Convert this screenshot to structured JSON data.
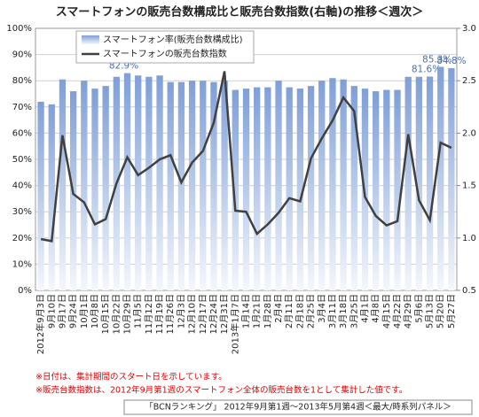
{
  "chart_data": {
    "type": "bar_line",
    "title": "スマートフォンの販売台数構成比と販売台数指数(右軸)の推移＜週次＞",
    "categories": [
      "2012年9月3日",
      "9月10日",
      "9月17日",
      "9月24日",
      "10月1日",
      "10月8日",
      "10月15日",
      "10月22日",
      "10月29日",
      "11月5日",
      "11月12日",
      "11月19日",
      "11月26日",
      "12月3日",
      "12月10日",
      "12月17日",
      "12月24日",
      "12月31日",
      "2013年1月7日",
      "1月14日",
      "1月21日",
      "1月28日",
      "2月4日",
      "2月11日",
      "2月18日",
      "2月25日",
      "3月4日",
      "3月11日",
      "3月18日",
      "3月25日",
      "4月1日",
      "4月8日",
      "4月15日",
      "4月22日",
      "4月29日",
      "5月6日",
      "5月13日",
      "5月20日",
      "5月27日"
    ],
    "series": [
      {
        "name": "スマートフォン率(販売台数構成比)",
        "type": "bar",
        "color": "#7f9fd8",
        "values": [
          72,
          71,
          80.5,
          76,
          80,
          77,
          78,
          81.5,
          82.9,
          82,
          81.5,
          82,
          79.5,
          79.5,
          80,
          80,
          79.5,
          80,
          76.5,
          77,
          77.5,
          77.5,
          80,
          77.5,
          77,
          78,
          80,
          81,
          80.5,
          78,
          77,
          76,
          76.5,
          76.5,
          81.5,
          81.5,
          81.6,
          85.3,
          84.8
        ],
        "value_labels": [
          null,
          null,
          null,
          null,
          null,
          null,
          null,
          null,
          "82.9%",
          null,
          null,
          null,
          null,
          null,
          null,
          null,
          null,
          null,
          null,
          null,
          null,
          null,
          null,
          null,
          null,
          null,
          null,
          null,
          null,
          null,
          null,
          null,
          null,
          null,
          null,
          null,
          "81.6%",
          "85.3%",
          "84.8%"
        ]
      },
      {
        "name": "スマートフォンの販売台数指数",
        "type": "line",
        "color": "#404040",
        "axis": "y2",
        "values": [
          0.99,
          0.97,
          1.98,
          1.42,
          1.34,
          1.13,
          1.18,
          1.52,
          1.77,
          1.6,
          1.67,
          1.75,
          1.79,
          1.53,
          1.72,
          1.83,
          2.1,
          2.59,
          1.26,
          1.25,
          1.04,
          1.13,
          1.24,
          1.38,
          1.35,
          1.76,
          1.95,
          2.12,
          2.34,
          2.21,
          1.39,
          1.21,
          1.12,
          1.16,
          1.99,
          1.36,
          1.17,
          1.91,
          1.86
        ]
      }
    ],
    "ylim": [
      0,
      100
    ],
    "yticks": [
      {
        "value": 0,
        "label": "0%"
      },
      {
        "value": 10,
        "label": "10%"
      },
      {
        "value": 20,
        "label": "20%"
      },
      {
        "value": 30,
        "label": "30%"
      },
      {
        "value": 40,
        "label": "40%"
      },
      {
        "value": 50,
        "label": "50%"
      },
      {
        "value": 60,
        "label": "60%"
      },
      {
        "value": 70,
        "label": "70%"
      },
      {
        "value": 80,
        "label": "80%"
      },
      {
        "value": 90,
        "label": "90%"
      },
      {
        "value": 100,
        "label": "100%"
      }
    ],
    "y2lim": [
      0.5,
      3.0
    ],
    "y2ticks": [
      0.5,
      {
        "value": 1,
        "label": "1.0"
      },
      1.5,
      {
        "value": 2,
        "label": "2.0"
      },
      2.5,
      {
        "value": 3,
        "label": "3.0"
      }
    ],
    "legend": "upper left",
    "notes": [
      "※日付は、集計期間のスタート日を示しています。",
      "※販売台数指数は、2012年9月第1週のスマートフォン全体の販売台数を1として集計した値です。"
    ],
    "source": "「BCNランキング」 2012年9月第1週～2013年5月第4週＜最大/時系列パネル＞"
  }
}
